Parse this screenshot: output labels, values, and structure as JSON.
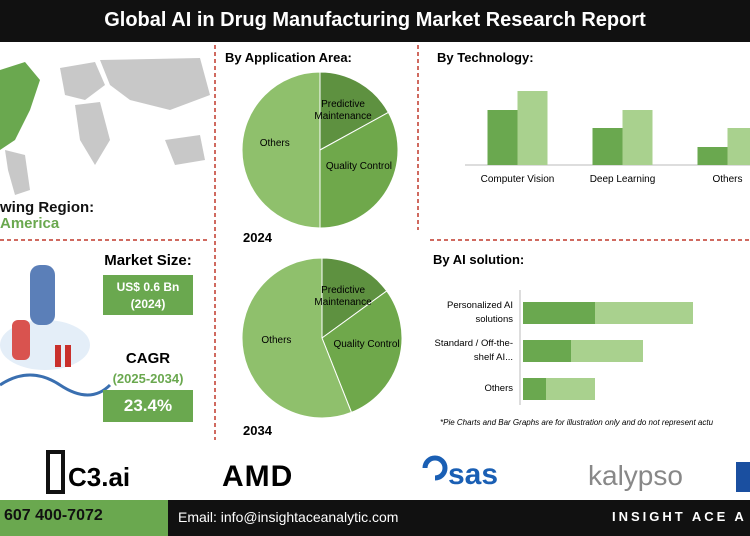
{
  "header": {
    "title": "Global AI in Drug Manufacturing Market Research Report"
  },
  "region": {
    "label": "wing Region:",
    "value": "America"
  },
  "market_size": {
    "label": "Market Size:",
    "value": "US$ 0.6 Bn",
    "year": "(2024)"
  },
  "cagr": {
    "label": "CAGR",
    "period": "(2025-2034)",
    "value": "23.4%"
  },
  "chart_data": [
    {
      "type": "pie",
      "title": "By Application Area:",
      "subtitle": "2024",
      "categories": [
        "Predictive Maintenance",
        "Quality Control",
        "Others"
      ],
      "values": [
        17,
        33,
        50
      ],
      "colors": [
        "#5e9140",
        "#6fa84b",
        "#8fc06c"
      ]
    },
    {
      "type": "pie",
      "subtitle": "2034",
      "categories": [
        "Predictive Maintenance",
        "Quality Control",
        "Others"
      ],
      "values": [
        15,
        29,
        56
      ],
      "colors": [
        "#5e9140",
        "#6fa84b",
        "#8fc06c"
      ]
    },
    {
      "type": "bar",
      "title": "By  Technology:",
      "categories": [
        "Computer Vision",
        "Deep Learning",
        "Others"
      ],
      "series": [
        {
          "color": "#6aa84f",
          "values": [
            55,
            37,
            18
          ]
        },
        {
          "color": "#a9d18e",
          "values": [
            74,
            55,
            37
          ]
        }
      ],
      "ylim": [
        0,
        80
      ]
    },
    {
      "type": "bar",
      "orientation": "horizontal",
      "stacked": true,
      "title": "By AI solution:",
      "categories": [
        "Personalized AI solutions",
        "Standard / Off-the-shelf AI...",
        "Others"
      ],
      "series": [
        {
          "color": "#6aa84f",
          "values": [
            72,
            48,
            23
          ]
        },
        {
          "color": "#a9d18e",
          "values": [
            98,
            72,
            49
          ]
        }
      ],
      "xlim": [
        0,
        200
      ]
    }
  ],
  "note": "*Pie Charts and Bar Graphs are for illustration only and do not represent actu",
  "logos": [
    "C3.ai",
    "AMD",
    "sas",
    "kalypso"
  ],
  "footer": {
    "phone": "607 400-7072",
    "email": "Email: info@insightaceanalytic.com",
    "brand": "INSIGHT ACE A"
  }
}
